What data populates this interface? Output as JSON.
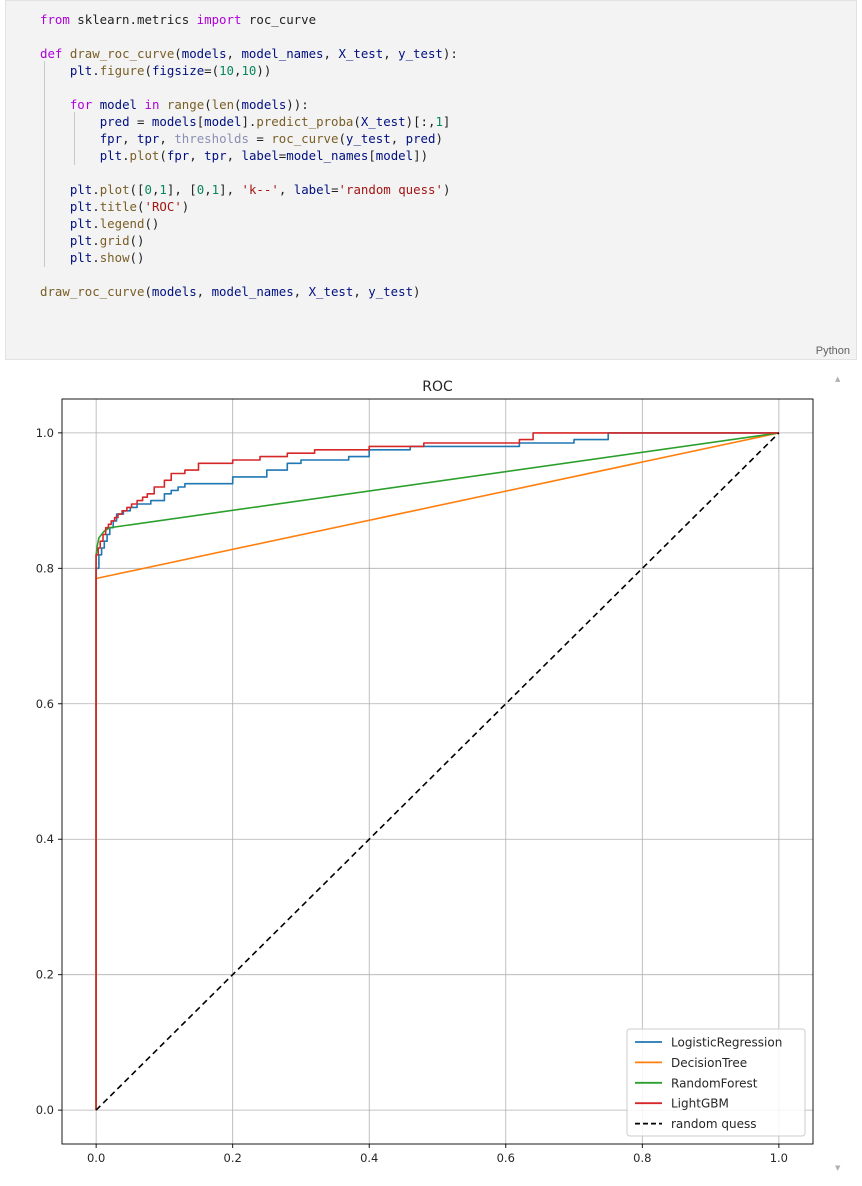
{
  "code_cell": {
    "language_label": "Python",
    "lines": [
      [
        {
          "t": "from",
          "c": "kw"
        },
        {
          "t": " sklearn.metrics ",
          "c": ""
        },
        {
          "t": "import",
          "c": "kw"
        },
        {
          "t": " roc_curve",
          "c": ""
        }
      ],
      [],
      [
        {
          "t": "def",
          "c": "kw"
        },
        {
          "t": " ",
          "c": ""
        },
        {
          "t": "draw_roc_curve",
          "c": "fn"
        },
        {
          "t": "(",
          "c": ""
        },
        {
          "t": "models",
          "c": "var"
        },
        {
          "t": ", ",
          "c": ""
        },
        {
          "t": "model_names",
          "c": "var"
        },
        {
          "t": ", ",
          "c": ""
        },
        {
          "t": "X_test",
          "c": "var"
        },
        {
          "t": ", ",
          "c": ""
        },
        {
          "t": "y_test",
          "c": "var"
        },
        {
          "t": "):",
          "c": ""
        }
      ],
      [
        {
          "t": "    ",
          "c": ""
        },
        {
          "t": "plt",
          "c": "var"
        },
        {
          "t": ".",
          "c": ""
        },
        {
          "t": "figure",
          "c": "fn"
        },
        {
          "t": "(",
          "c": ""
        },
        {
          "t": "figsize",
          "c": "var"
        },
        {
          "t": "=(",
          "c": ""
        },
        {
          "t": "10",
          "c": "num"
        },
        {
          "t": ",",
          "c": ""
        },
        {
          "t": "10",
          "c": "num"
        },
        {
          "t": "))",
          "c": ""
        }
      ],
      [],
      [
        {
          "t": "    ",
          "c": ""
        },
        {
          "t": "for",
          "c": "kw"
        },
        {
          "t": " ",
          "c": ""
        },
        {
          "t": "model",
          "c": "var"
        },
        {
          "t": " ",
          "c": ""
        },
        {
          "t": "in",
          "c": "kw"
        },
        {
          "t": " ",
          "c": ""
        },
        {
          "t": "range",
          "c": "fn"
        },
        {
          "t": "(",
          "c": ""
        },
        {
          "t": "len",
          "c": "fn"
        },
        {
          "t": "(",
          "c": ""
        },
        {
          "t": "models",
          "c": "var"
        },
        {
          "t": ")):",
          "c": ""
        }
      ],
      [
        {
          "t": "        ",
          "c": ""
        },
        {
          "t": "pred",
          "c": "var"
        },
        {
          "t": " = ",
          "c": ""
        },
        {
          "t": "models",
          "c": "var"
        },
        {
          "t": "[",
          "c": ""
        },
        {
          "t": "model",
          "c": "var"
        },
        {
          "t": "].",
          "c": ""
        },
        {
          "t": "predict_proba",
          "c": "fn"
        },
        {
          "t": "(",
          "c": ""
        },
        {
          "t": "X_test",
          "c": "var"
        },
        {
          "t": ")[:,",
          "c": ""
        },
        {
          "t": "1",
          "c": "num"
        },
        {
          "t": "]",
          "c": ""
        }
      ],
      [
        {
          "t": "        ",
          "c": ""
        },
        {
          "t": "fpr",
          "c": "var"
        },
        {
          "t": ", ",
          "c": ""
        },
        {
          "t": "tpr",
          "c": "var"
        },
        {
          "t": ", ",
          "c": ""
        },
        {
          "t": "thresholds",
          "c": "dim"
        },
        {
          "t": " = ",
          "c": ""
        },
        {
          "t": "roc_curve",
          "c": "fn"
        },
        {
          "t": "(",
          "c": ""
        },
        {
          "t": "y_test",
          "c": "var"
        },
        {
          "t": ", ",
          "c": ""
        },
        {
          "t": "pred",
          "c": "var"
        },
        {
          "t": ")",
          "c": ""
        }
      ],
      [
        {
          "t": "        ",
          "c": ""
        },
        {
          "t": "plt",
          "c": "var"
        },
        {
          "t": ".",
          "c": ""
        },
        {
          "t": "plot",
          "c": "fn"
        },
        {
          "t": "(",
          "c": ""
        },
        {
          "t": "fpr",
          "c": "var"
        },
        {
          "t": ", ",
          "c": ""
        },
        {
          "t": "tpr",
          "c": "var"
        },
        {
          "t": ", ",
          "c": ""
        },
        {
          "t": "label",
          "c": "var"
        },
        {
          "t": "=",
          "c": ""
        },
        {
          "t": "model_names",
          "c": "var"
        },
        {
          "t": "[",
          "c": ""
        },
        {
          "t": "model",
          "c": "var"
        },
        {
          "t": "])",
          "c": ""
        }
      ],
      [],
      [
        {
          "t": "    ",
          "c": ""
        },
        {
          "t": "plt",
          "c": "var"
        },
        {
          "t": ".",
          "c": ""
        },
        {
          "t": "plot",
          "c": "fn"
        },
        {
          "t": "([",
          "c": ""
        },
        {
          "t": "0",
          "c": "num"
        },
        {
          "t": ",",
          "c": ""
        },
        {
          "t": "1",
          "c": "num"
        },
        {
          "t": "], [",
          "c": ""
        },
        {
          "t": "0",
          "c": "num"
        },
        {
          "t": ",",
          "c": ""
        },
        {
          "t": "1",
          "c": "num"
        },
        {
          "t": "], ",
          "c": ""
        },
        {
          "t": "'k--'",
          "c": "str"
        },
        {
          "t": ", ",
          "c": ""
        },
        {
          "t": "label",
          "c": "var"
        },
        {
          "t": "=",
          "c": ""
        },
        {
          "t": "'random quess'",
          "c": "str"
        },
        {
          "t": ")",
          "c": ""
        }
      ],
      [
        {
          "t": "    ",
          "c": ""
        },
        {
          "t": "plt",
          "c": "var"
        },
        {
          "t": ".",
          "c": ""
        },
        {
          "t": "title",
          "c": "fn"
        },
        {
          "t": "(",
          "c": ""
        },
        {
          "t": "'ROC'",
          "c": "str"
        },
        {
          "t": ")",
          "c": ""
        }
      ],
      [
        {
          "t": "    ",
          "c": ""
        },
        {
          "t": "plt",
          "c": "var"
        },
        {
          "t": ".",
          "c": ""
        },
        {
          "t": "legend",
          "c": "fn"
        },
        {
          "t": "()",
          "c": ""
        }
      ],
      [
        {
          "t": "    ",
          "c": ""
        },
        {
          "t": "plt",
          "c": "var"
        },
        {
          "t": ".",
          "c": ""
        },
        {
          "t": "grid",
          "c": "fn"
        },
        {
          "t": "()",
          "c": ""
        }
      ],
      [
        {
          "t": "    ",
          "c": ""
        },
        {
          "t": "plt",
          "c": "var"
        },
        {
          "t": ".",
          "c": ""
        },
        {
          "t": "show",
          "c": "fn"
        },
        {
          "t": "()",
          "c": ""
        }
      ],
      [],
      [
        {
          "t": "draw_roc_curve",
          "c": "fn"
        },
        {
          "t": "(",
          "c": ""
        },
        {
          "t": "models",
          "c": "var"
        },
        {
          "t": ", ",
          "c": ""
        },
        {
          "t": "model_names",
          "c": "var"
        },
        {
          "t": ", ",
          "c": ""
        },
        {
          "t": "X_test",
          "c": "var"
        },
        {
          "t": ", ",
          "c": ""
        },
        {
          "t": "y_test",
          "c": "var"
        },
        {
          "t": ")",
          "c": ""
        }
      ]
    ]
  },
  "output": {
    "scroll_up_icon": "▲",
    "scroll_down_icon": "▼"
  },
  "chart_data": {
    "type": "line",
    "title": "ROC",
    "xlabel": "",
    "ylabel": "",
    "xlim": [
      -0.05,
      1.05
    ],
    "ylim": [
      -0.05,
      1.05
    ],
    "xticks": [
      0.0,
      0.2,
      0.4,
      0.6,
      0.8,
      1.0
    ],
    "yticks": [
      0.0,
      0.2,
      0.4,
      0.6,
      0.8,
      1.0
    ],
    "tick_labels": [
      "0.0",
      "0.2",
      "0.4",
      "0.6",
      "0.8",
      "1.0"
    ],
    "grid": true,
    "legend_position": "lower right",
    "series": [
      {
        "name": "LogisticRegression",
        "color": "#1f77b4",
        "dash": "",
        "x": [
          0,
          0,
          0.004,
          0.004,
          0.008,
          0.008,
          0.012,
          0.012,
          0.016,
          0.016,
          0.02,
          0.02,
          0.025,
          0.025,
          0.03,
          0.03,
          0.04,
          0.04,
          0.05,
          0.05,
          0.06,
          0.06,
          0.08,
          0.08,
          0.1,
          0.1,
          0.11,
          0.11,
          0.12,
          0.12,
          0.13,
          0.13,
          0.16,
          0.16,
          0.2,
          0.2,
          0.25,
          0.25,
          0.28,
          0.28,
          0.3,
          0.3,
          0.33,
          0.33,
          0.37,
          0.37,
          0.4,
          0.4,
          0.46,
          0.46,
          0.62,
          0.62,
          0.7,
          0.7,
          0.75,
          0.75,
          1.0
        ],
        "y": [
          0,
          0.8,
          0.8,
          0.82,
          0.82,
          0.83,
          0.83,
          0.84,
          0.84,
          0.85,
          0.85,
          0.86,
          0.86,
          0.87,
          0.87,
          0.88,
          0.88,
          0.885,
          0.885,
          0.89,
          0.89,
          0.895,
          0.895,
          0.9,
          0.9,
          0.91,
          0.91,
          0.915,
          0.915,
          0.92,
          0.92,
          0.925,
          0.925,
          0.925,
          0.925,
          0.935,
          0.935,
          0.945,
          0.945,
          0.955,
          0.955,
          0.96,
          0.96,
          0.96,
          0.96,
          0.965,
          0.965,
          0.975,
          0.975,
          0.98,
          0.98,
          0.985,
          0.985,
          0.99,
          0.99,
          1.0,
          1.0
        ]
      },
      {
        "name": "DecisionTree",
        "color": "#ff7f0e",
        "dash": "",
        "x": [
          0,
          0,
          1.0
        ],
        "y": [
          0,
          0.785,
          1.0
        ]
      },
      {
        "name": "RandomForest",
        "color": "#2ca02c",
        "dash": "",
        "x": [
          0,
          0,
          0.002,
          0.004,
          0.008,
          0.012,
          0.02,
          1.0
        ],
        "y": [
          0,
          0.82,
          0.835,
          0.845,
          0.85,
          0.855,
          0.86,
          1.0
        ]
      },
      {
        "name": "LightGBM",
        "color": "#d62728",
        "dash": "",
        "x": [
          0,
          0,
          0.003,
          0.003,
          0.006,
          0.006,
          0.01,
          0.01,
          0.014,
          0.014,
          0.018,
          0.018,
          0.022,
          0.022,
          0.027,
          0.027,
          0.032,
          0.032,
          0.038,
          0.038,
          0.045,
          0.045,
          0.052,
          0.052,
          0.06,
          0.06,
          0.068,
          0.068,
          0.075,
          0.075,
          0.085,
          0.085,
          0.1,
          0.1,
          0.11,
          0.11,
          0.13,
          0.13,
          0.15,
          0.15,
          0.2,
          0.2,
          0.24,
          0.24,
          0.28,
          0.28,
          0.32,
          0.32,
          0.4,
          0.4,
          0.48,
          0.48,
          0.62,
          0.62,
          0.64,
          0.64,
          1.0
        ],
        "y": [
          0,
          0.82,
          0.82,
          0.83,
          0.83,
          0.84,
          0.84,
          0.85,
          0.85,
          0.86,
          0.86,
          0.865,
          0.865,
          0.87,
          0.87,
          0.875,
          0.875,
          0.88,
          0.88,
          0.885,
          0.885,
          0.89,
          0.89,
          0.895,
          0.895,
          0.9,
          0.9,
          0.905,
          0.905,
          0.91,
          0.91,
          0.92,
          0.92,
          0.93,
          0.93,
          0.94,
          0.94,
          0.945,
          0.945,
          0.955,
          0.955,
          0.96,
          0.96,
          0.965,
          0.965,
          0.97,
          0.97,
          0.975,
          0.975,
          0.98,
          0.98,
          0.985,
          0.985,
          0.99,
          0.99,
          1.0,
          1.0
        ]
      },
      {
        "name": "random quess",
        "color": "#000000",
        "dash": "6,4",
        "x": [
          0,
          1
        ],
        "y": [
          0,
          1
        ]
      }
    ]
  }
}
